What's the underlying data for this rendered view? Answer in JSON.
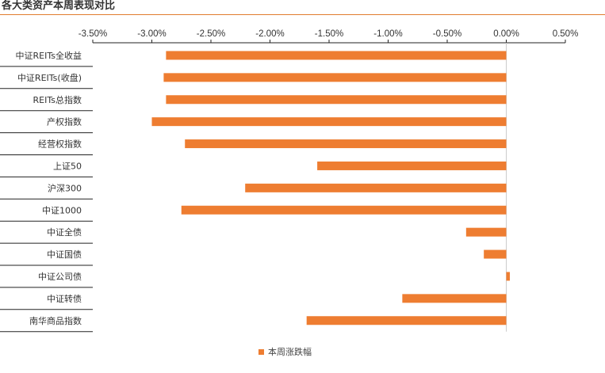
{
  "header": {
    "title": "各大类资产本周表现对比"
  },
  "colors": {
    "accent": "#e07c2e",
    "bar": "#ee7d31",
    "text": "#333333",
    "rule": "#222222"
  },
  "chart_data": {
    "type": "bar",
    "orientation": "horizontal",
    "title": "",
    "categories": [
      "中证REITs全收益",
      "中证REITs(收盘)",
      "REITs总指数",
      "产权指数",
      "经营权指数",
      "上证50",
      "沪深300",
      "中证1000",
      "中证全债",
      "中证国债",
      "中证公司债",
      "中证转债",
      "南华商品指数"
    ],
    "series": [
      {
        "name": "本周涨跌幅",
        "values": [
          -2.88,
          -2.9,
          -2.88,
          -3.0,
          -2.72,
          -1.6,
          -2.21,
          -2.75,
          -0.34,
          -0.19,
          0.03,
          -0.88,
          -1.69
        ]
      }
    ],
    "xlim": [
      -3.5,
      0.5
    ],
    "xticks": [
      "-3.50%",
      "-3.00%",
      "-2.50%",
      "-2.00%",
      "-1.50%",
      "-1.00%",
      "-0.50%",
      "0.00%",
      "0.50%"
    ],
    "xtick_values": [
      -3.5,
      -3.0,
      -2.5,
      -2.0,
      -1.5,
      -1.0,
      -0.5,
      0.0,
      0.5
    ],
    "xaxis_position": "top",
    "grid": false,
    "legend": "bottom-center"
  }
}
